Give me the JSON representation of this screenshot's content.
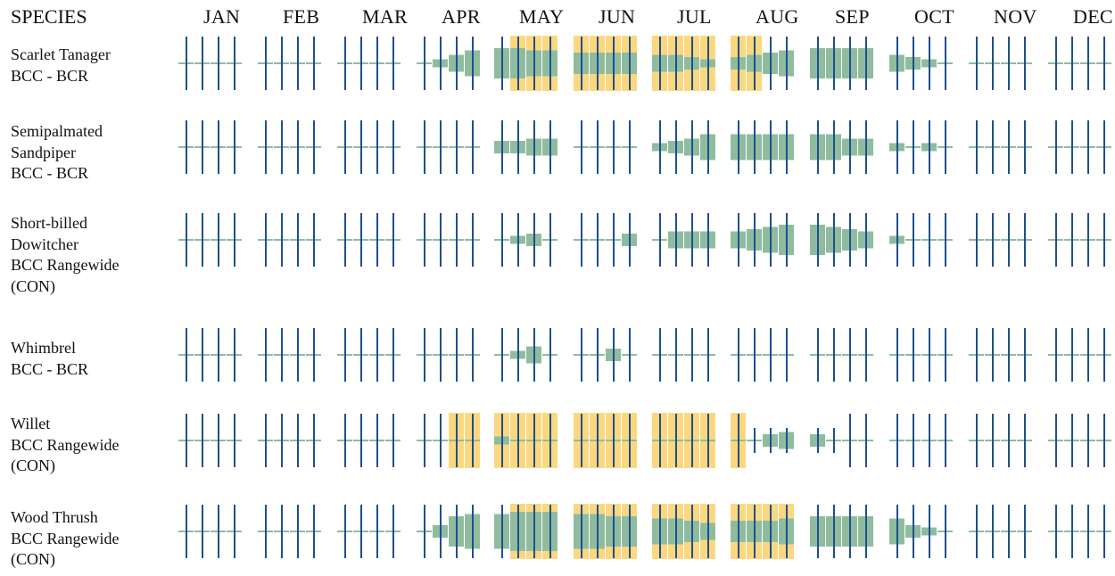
{
  "header": {
    "species_label": "SPECIES"
  },
  "months": [
    "JAN",
    "FEB",
    "MAR",
    "APR",
    "MAY",
    "JUN",
    "JUL",
    "AUG",
    "SEP",
    "OCT",
    "NOV",
    "DEC"
  ],
  "colors": {
    "presence": "#8fbc9f",
    "breeding": "#fbd87f",
    "survey": "#1f4f8f",
    "no_data": "#8fbc9f"
  },
  "chart_data": {
    "type": "table",
    "description_note": "Each species row has 48 weekly cells (4 per month). presence = probability of presence level 0-10 (bar height); breeding = 1 if breeding-season highlight; survey = 1 if survey-effort line drawn.",
    "species": [
      {
        "name_lines": [
          "Scarlet Tanager",
          "BCC - BCR"
        ],
        "presence": [
          0,
          0,
          0,
          0,
          0,
          0,
          0,
          0,
          0,
          0,
          0,
          0,
          0,
          1,
          3,
          5,
          6,
          6,
          5,
          5,
          4,
          4,
          4,
          4,
          3,
          3,
          2,
          1,
          2,
          3,
          4,
          5,
          6,
          6,
          6,
          6,
          3,
          2,
          1,
          0,
          0,
          0,
          0,
          0,
          0,
          0,
          0,
          0
        ],
        "breeding": [
          0,
          0,
          0,
          0,
          0,
          0,
          0,
          0,
          0,
          0,
          0,
          0,
          0,
          0,
          0,
          0,
          0,
          1,
          1,
          1,
          1,
          1,
          1,
          1,
          1,
          1,
          1,
          1,
          1,
          1,
          0,
          0,
          0,
          0,
          0,
          0,
          0,
          0,
          0,
          0,
          0,
          0,
          0,
          0,
          0,
          0,
          0,
          0
        ],
        "survey": [
          1,
          1,
          1,
          1,
          1,
          1,
          1,
          1,
          1,
          1,
          1,
          1,
          1,
          1,
          1,
          1,
          1,
          1,
          1,
          1,
          1,
          1,
          1,
          1,
          1,
          1,
          1,
          1,
          1,
          1,
          1,
          1,
          1,
          1,
          1,
          1,
          1,
          1,
          1,
          1,
          1,
          1,
          1,
          1,
          1,
          1,
          1,
          1
        ]
      },
      {
        "name_lines": [
          "Semipalmated",
          "Sandpiper",
          "BCC - BCR"
        ],
        "presence": [
          0,
          0,
          0,
          0,
          0,
          0,
          0,
          0,
          0,
          0,
          0,
          0,
          0,
          0,
          0,
          0,
          2,
          2,
          3,
          3,
          0,
          0,
          0,
          0,
          1,
          2,
          3,
          5,
          5,
          5,
          5,
          5,
          5,
          5,
          3,
          3,
          1,
          0,
          1,
          0,
          0,
          0,
          0,
          0,
          0,
          0,
          0,
          0
        ],
        "breeding": [
          0,
          0,
          0,
          0,
          0,
          0,
          0,
          0,
          0,
          0,
          0,
          0,
          0,
          0,
          0,
          0,
          0,
          0,
          0,
          0,
          0,
          0,
          0,
          0,
          0,
          0,
          0,
          0,
          0,
          0,
          0,
          0,
          0,
          0,
          0,
          0,
          0,
          0,
          0,
          0,
          0,
          0,
          0,
          0,
          0,
          0,
          0,
          0
        ],
        "survey": [
          1,
          1,
          1,
          1,
          1,
          1,
          1,
          1,
          1,
          1,
          1,
          1,
          1,
          1,
          1,
          1,
          1,
          1,
          1,
          1,
          1,
          1,
          1,
          1,
          1,
          1,
          1,
          1,
          1,
          1,
          1,
          1,
          1,
          1,
          1,
          1,
          1,
          1,
          1,
          1,
          1,
          1,
          1,
          1,
          1,
          1,
          1,
          1
        ]
      },
      {
        "name_lines": [
          "Short-billed",
          "Dowitcher",
          "BCC Rangewide",
          "(CON)"
        ],
        "presence": [
          0,
          0,
          0,
          0,
          0,
          0,
          0,
          0,
          0,
          0,
          0,
          0,
          0,
          0,
          0,
          0,
          0,
          1,
          2,
          0,
          0,
          0,
          0,
          2,
          0,
          3,
          3,
          3,
          3,
          4,
          5,
          6,
          6,
          5,
          4,
          3,
          1,
          0,
          0,
          0,
          0,
          0,
          0,
          0,
          0,
          0,
          0,
          0
        ],
        "breeding": [
          0,
          0,
          0,
          0,
          0,
          0,
          0,
          0,
          0,
          0,
          0,
          0,
          0,
          0,
          0,
          0,
          0,
          0,
          0,
          0,
          0,
          0,
          0,
          0,
          0,
          0,
          0,
          0,
          0,
          0,
          0,
          0,
          0,
          0,
          0,
          0,
          0,
          0,
          0,
          0,
          0,
          0,
          0,
          0,
          0,
          0,
          0,
          0
        ],
        "survey": [
          1,
          1,
          1,
          1,
          1,
          1,
          1,
          1,
          1,
          1,
          1,
          1,
          1,
          1,
          1,
          1,
          1,
          1,
          1,
          1,
          1,
          1,
          1,
          1,
          1,
          1,
          1,
          1,
          1,
          1,
          1,
          1,
          1,
          1,
          1,
          1,
          1,
          1,
          1,
          1,
          1,
          1,
          1,
          1,
          1,
          1,
          1,
          1
        ]
      },
      {
        "name_lines": [
          "Whimbrel",
          "BCC - BCR"
        ],
        "presence": [
          0,
          0,
          0,
          0,
          0,
          0,
          0,
          0,
          0,
          0,
          0,
          0,
          0,
          0,
          0,
          0,
          0,
          1,
          3,
          0,
          0,
          0,
          2,
          0,
          0,
          0,
          0,
          0,
          0,
          0,
          0,
          0,
          0,
          0,
          0,
          0,
          0,
          0,
          0,
          0,
          0,
          0,
          0,
          0,
          0,
          0,
          0,
          0
        ],
        "breeding": [
          0,
          0,
          0,
          0,
          0,
          0,
          0,
          0,
          0,
          0,
          0,
          0,
          0,
          0,
          0,
          0,
          0,
          0,
          0,
          0,
          0,
          0,
          0,
          0,
          0,
          0,
          0,
          0,
          0,
          0,
          0,
          0,
          0,
          0,
          0,
          0,
          0,
          0,
          0,
          0,
          0,
          0,
          0,
          0,
          0,
          0,
          0,
          0
        ],
        "survey": [
          1,
          1,
          1,
          1,
          1,
          1,
          1,
          1,
          1,
          1,
          1,
          1,
          1,
          1,
          1,
          1,
          1,
          1,
          1,
          1,
          1,
          1,
          1,
          1,
          1,
          1,
          1,
          1,
          1,
          1,
          1,
          1,
          1,
          1,
          1,
          1,
          1,
          1,
          1,
          1,
          1,
          1,
          1,
          1,
          1,
          1,
          1,
          1
        ]
      },
      {
        "name_lines": [
          "Willet",
          "BCC Rangewide",
          "(CON)"
        ],
        "presence": [
          0,
          0,
          0,
          0,
          0,
          0,
          0,
          0,
          0,
          0,
          0,
          0,
          0,
          0,
          0,
          0,
          1,
          0,
          0,
          0,
          0,
          0,
          0,
          0,
          0,
          0,
          0,
          0,
          0,
          0,
          2,
          3,
          2,
          0,
          0,
          0,
          0,
          0,
          0,
          0,
          0,
          0,
          0,
          0,
          0,
          0,
          0,
          0
        ],
        "breeding": [
          0,
          0,
          0,
          0,
          0,
          0,
          0,
          0,
          0,
          0,
          0,
          0,
          0,
          0,
          1,
          1,
          1,
          1,
          1,
          1,
          1,
          1,
          1,
          1,
          1,
          1,
          1,
          1,
          1,
          0,
          0,
          0,
          0,
          0,
          0,
          0,
          0,
          0,
          0,
          0,
          0,
          0,
          0,
          0,
          0,
          0,
          0,
          0
        ],
        "survey": [
          1,
          1,
          1,
          1,
          1,
          1,
          1,
          1,
          1,
          1,
          1,
          1,
          1,
          1,
          1,
          1,
          1,
          1,
          1,
          1,
          1,
          1,
          1,
          1,
          1,
          1,
          1,
          1,
          1,
          0,
          0,
          0,
          0,
          0,
          1,
          1,
          1,
          1,
          1,
          1,
          1,
          1,
          1,
          1,
          1,
          1,
          1,
          1
        ]
      },
      {
        "name_lines": [
          "Wood Thrush",
          "BCC Rangewide",
          "(CON)"
        ],
        "presence": [
          0,
          0,
          0,
          0,
          0,
          0,
          0,
          0,
          0,
          0,
          0,
          0,
          0,
          2,
          6,
          7,
          7,
          8,
          8,
          8,
          7,
          7,
          6,
          6,
          5,
          5,
          4,
          3,
          4,
          4,
          4,
          5,
          6,
          6,
          6,
          6,
          5,
          2,
          1,
          0,
          0,
          0,
          0,
          0,
          0,
          0,
          0,
          0
        ],
        "breeding": [
          0,
          0,
          0,
          0,
          0,
          0,
          0,
          0,
          0,
          0,
          0,
          0,
          0,
          0,
          0,
          0,
          0,
          1,
          1,
          1,
          1,
          1,
          1,
          1,
          1,
          1,
          1,
          1,
          1,
          1,
          1,
          1,
          0,
          0,
          0,
          0,
          0,
          0,
          0,
          0,
          0,
          0,
          0,
          0,
          0,
          0,
          0,
          0
        ],
        "survey": [
          1,
          1,
          1,
          1,
          1,
          1,
          1,
          1,
          1,
          1,
          1,
          1,
          1,
          1,
          1,
          1,
          1,
          1,
          1,
          1,
          1,
          1,
          1,
          1,
          1,
          1,
          1,
          1,
          1,
          1,
          1,
          1,
          1,
          1,
          1,
          1,
          1,
          1,
          1,
          1,
          1,
          1,
          1,
          1,
          1,
          1,
          1,
          1
        ]
      }
    ]
  }
}
